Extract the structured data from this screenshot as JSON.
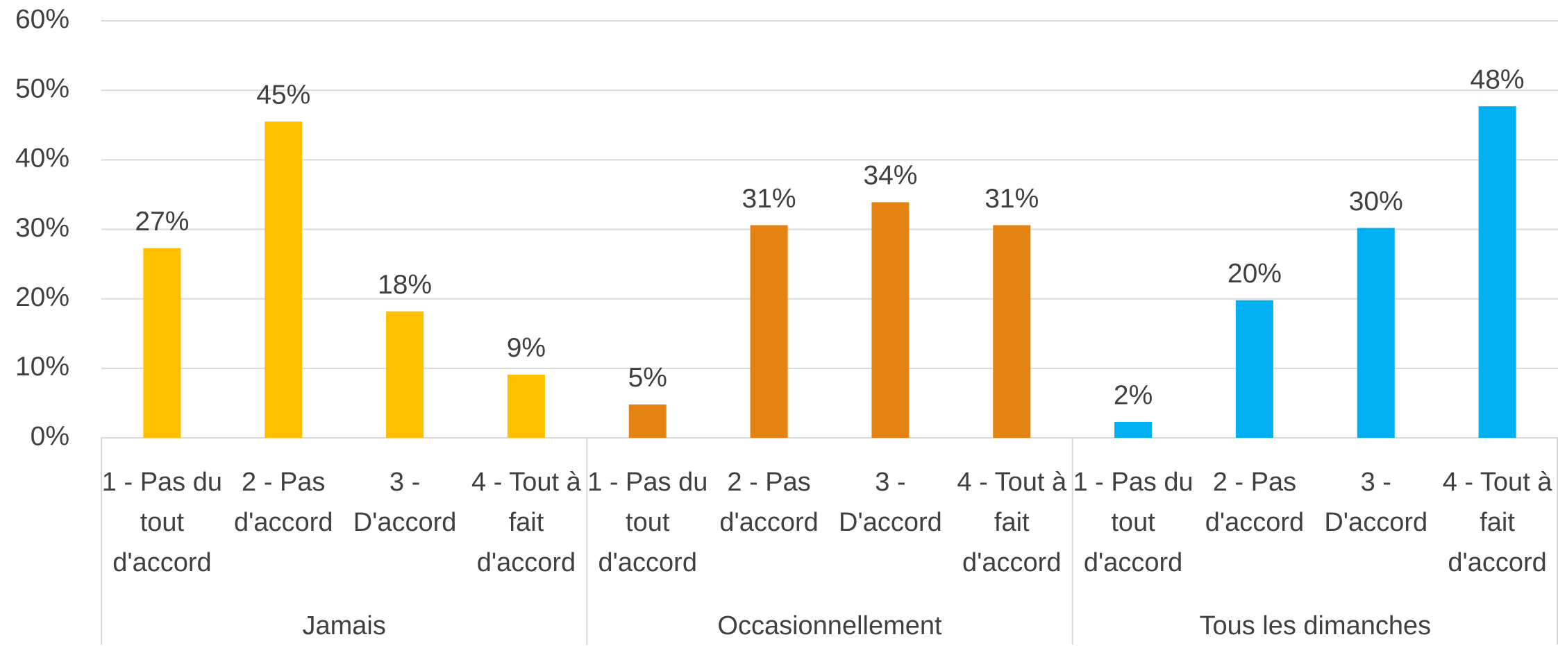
{
  "chart_data": {
    "type": "bar",
    "categories": [
      "1 - Pas du tout d'accord",
      "2 - Pas d'accord",
      "3 - D'accord",
      "4 - Tout à fait d'accord"
    ],
    "series": [
      {
        "name": "Jamais",
        "color": "#ffc000",
        "values": [
          27.3,
          45.5,
          18.2,
          9.1
        ],
        "value_labels": [
          "27%",
          "45%",
          "18%",
          "9%"
        ]
      },
      {
        "name": "Occasionnellement",
        "color": "#e48312",
        "values": [
          4.8,
          30.6,
          33.9,
          30.6
        ],
        "value_labels": [
          "5%",
          "31%",
          "34%",
          "31%"
        ]
      },
      {
        "name": "Tous les dimanches",
        "color": "#00b0f0",
        "values": [
          2.3,
          19.8,
          30.2,
          47.7
        ],
        "value_labels": [
          "2%",
          "20%",
          "30%",
          "48%"
        ]
      }
    ],
    "ylim": [
      0,
      60
    ],
    "yticks": [
      {
        "value": 0,
        "label": "0%"
      },
      {
        "value": 10,
        "label": "10%"
      },
      {
        "value": 20,
        "label": "20%"
      },
      {
        "value": 30,
        "label": "30%"
      },
      {
        "value": 40,
        "label": "40%"
      },
      {
        "value": 50,
        "label": "50%"
      },
      {
        "value": 60,
        "label": "60%"
      }
    ],
    "grid": true
  }
}
